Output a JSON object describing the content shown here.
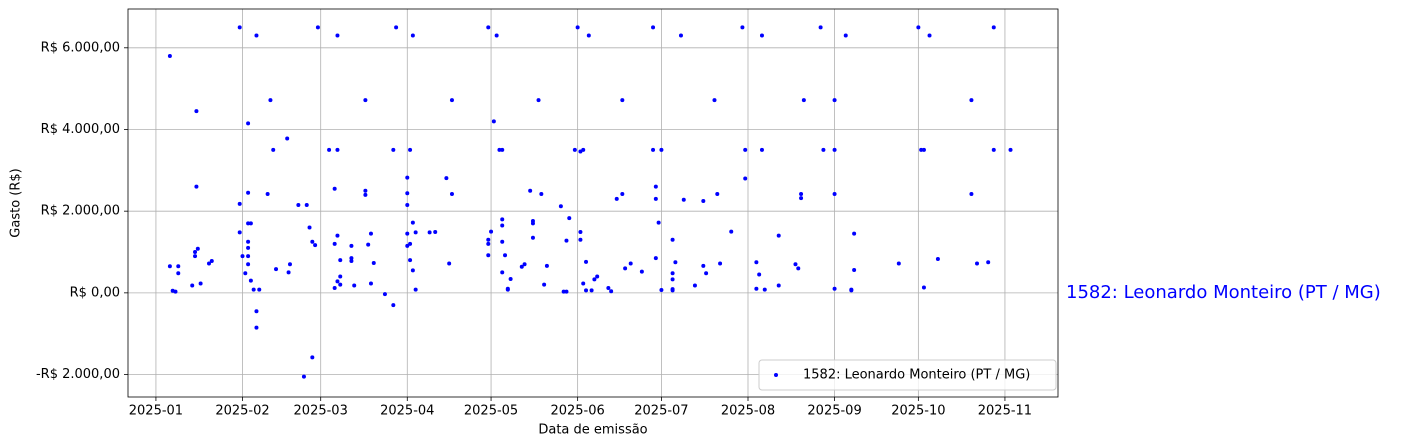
{
  "chart_data": {
    "type": "scatter",
    "x_label": "Data de emissão",
    "y_label": "Gasto (R$)",
    "annotation": "1582: Leonardo Monteiro (PT / MG)",
    "xlim": [
      20079,
      20412
    ],
    "ylim": [
      -2550,
      6950
    ],
    "xticks": [
      {
        "value": 20089,
        "label": "2025-01"
      },
      {
        "value": 20120,
        "label": "2025-02"
      },
      {
        "value": 20148,
        "label": "2025-03"
      },
      {
        "value": 20179,
        "label": "2025-04"
      },
      {
        "value": 20209,
        "label": "2025-05"
      },
      {
        "value": 20240,
        "label": "2025-06"
      },
      {
        "value": 20270,
        "label": "2025-07"
      },
      {
        "value": 20301,
        "label": "2025-08"
      },
      {
        "value": 20332,
        "label": "2025-09"
      },
      {
        "value": 20362,
        "label": "2025-10"
      },
      {
        "value": 20393,
        "label": "2025-11"
      }
    ],
    "yticks": [
      {
        "value": -2000,
        "label": "-R$ 2.000,00"
      },
      {
        "value": 0,
        "label": "R$ 0,00"
      },
      {
        "value": 2000,
        "label": "R$ 2.000,00"
      },
      {
        "value": 4000,
        "label": "R$ 4.000,00"
      },
      {
        "value": 6000,
        "label": "R$ 6.000,00"
      }
    ],
    "grid": true,
    "legend": "lower right",
    "x": [
      20094,
      20094,
      20095,
      20096,
      20097,
      20097,
      20102,
      20103,
      20103,
      20104,
      20103.5,
      20103.5,
      20105,
      20108,
      20109,
      20119,
      20119,
      20119,
      20120,
      20121,
      20122,
      20122,
      20122,
      20122,
      20122,
      20122,
      20122,
      20123,
      20123,
      20124,
      20125,
      20125,
      20125,
      20126,
      20129,
      20130,
      20131,
      20132,
      20136,
      20136.5,
      20137,
      20140,
      20142,
      20143,
      20144,
      20145,
      20145,
      20146,
      20147,
      20151,
      20153,
      20153,
      20154,
      20154,
      20154,
      20155,
      20155,
      20155,
      20153,
      20154,
      20159,
      20159,
      20159,
      20160,
      20164,
      20164,
      20164,
      20165,
      20166,
      20167,
      20166,
      20171,
      20174,
      20174,
      20175,
      20179,
      20179,
      20179,
      20179,
      20180,
      20179,
      20180,
      20181,
      20180,
      20181,
      20181,
      20182,
      20182,
      20187,
      20189,
      20193,
      20195,
      20195,
      20194,
      20208,
      20208,
      20208,
      20208,
      20209,
      20210,
      20211,
      20212,
      20213,
      20213,
      20213,
      20213,
      20214,
      20213,
      20215,
      20215,
      20216,
      20220,
      20221,
      20223,
      20224,
      20224,
      20224,
      20226,
      20227,
      20229,
      20228,
      20234,
      20235,
      20236,
      20236,
      20237,
      20240,
      20239,
      20241,
      20241,
      20242,
      20241,
      20242,
      20243,
      20243,
      20244,
      20245,
      20246,
      20247,
      20251,
      20252,
      20254,
      20256,
      20256,
      20257,
      20259,
      20263,
      20267,
      20267,
      20268,
      20268,
      20268,
      20269,
      20270,
      20270,
      20274,
      20275,
      20274,
      20274,
      20274,
      20274,
      20277,
      20278,
      20282,
      20285,
      20285,
      20286,
      20289,
      20290,
      20291,
      20295,
      20299,
      20300,
      20300,
      20304,
      20304,
      20305,
      20306,
      20306,
      20307,
      20312,
      20312,
      20318,
      20319,
      20320,
      20320,
      20321,
      20327,
      20328,
      20332,
      20332,
      20332,
      20332,
      20336,
      20338,
      20338,
      20339,
      20339,
      20355,
      20362,
      20363,
      20364,
      20364,
      20366,
      20369,
      20381,
      20381,
      20383,
      20387,
      20389,
      20389,
      20395
    ],
    "series": [
      {
        "name": "1582: Leonardo Monteiro (PT / MG)",
        "color": "#0000ff",
        "values": [
          5800,
          650,
          50,
          30,
          650,
          480,
          180,
          900,
          1000,
          1080,
          2600,
          4450,
          230,
          720,
          780,
          6500,
          2180,
          1480,
          900,
          480,
          1700,
          4150,
          2450,
          1250,
          1100,
          900,
          700,
          1700,
          300,
          80,
          6300,
          -450,
          -850,
          80,
          2420,
          4720,
          3500,
          580,
          3780,
          500,
          700,
          2150,
          -2050,
          2150,
          1600,
          1250,
          -1580,
          1170,
          6500,
          3500,
          2550,
          1200,
          6300,
          3500,
          1400,
          800,
          400,
          200,
          120,
          280,
          1150,
          850,
          780,
          180,
          4720,
          2500,
          2400,
          1180,
          1450,
          730,
          230,
          -30,
          3500,
          -300,
          6500,
          2820,
          2440,
          2150,
          1450,
          1200,
          1150,
          800,
          550,
          3500,
          6300,
          1720,
          1480,
          80,
          1480,
          1490,
          2810,
          4720,
          2420,
          720,
          6500,
          1300,
          1200,
          920,
          1500,
          4200,
          6300,
          3500,
          3500,
          1800,
          1650,
          1250,
          920,
          500,
          100,
          80,
          340,
          640,
          700,
          2500,
          1760,
          1700,
          1350,
          4720,
          2420,
          660,
          200,
          2120,
          30,
          30,
          1280,
          1830,
          6500,
          3500,
          3460,
          1490,
          3500,
          1300,
          230,
          60,
          760,
          6300,
          60,
          330,
          400,
          120,
          40,
          2300,
          4720,
          2420,
          600,
          720,
          520,
          6500,
          3500,
          850,
          2300,
          2600,
          1720,
          3500,
          70,
          1300,
          750,
          480,
          330,
          90,
          60,
          6300,
          2280,
          180,
          2250,
          660,
          480,
          4720,
          2420,
          720,
          1500,
          6500,
          3500,
          2800,
          100,
          750,
          450,
          6300,
          3500,
          80,
          1400,
          180,
          700,
          600,
          2320,
          2420,
          4720,
          6500,
          3500,
          3500,
          4720,
          2420,
          100,
          6300,
          60,
          80,
          560,
          1450,
          720,
          6500,
          3500,
          3500,
          130,
          6300,
          830,
          4720,
          2420,
          720,
          750,
          6500,
          3500,
          3500
        ]
      }
    ]
  }
}
